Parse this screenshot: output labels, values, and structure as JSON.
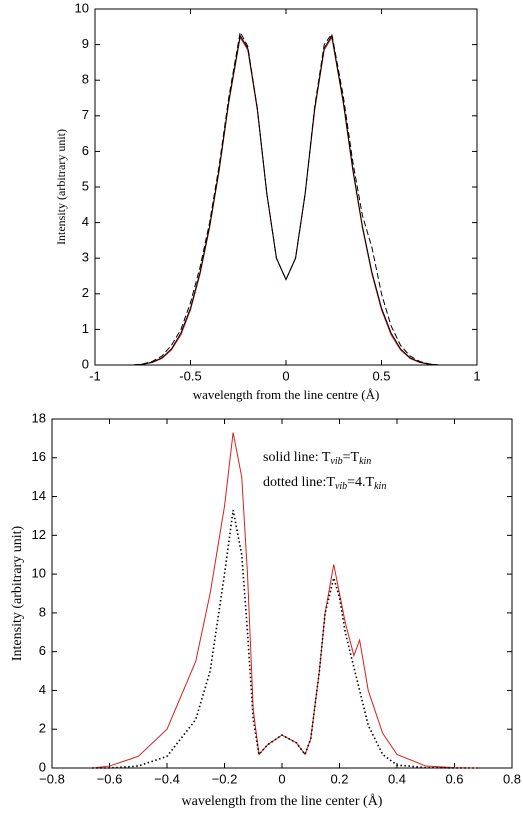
{
  "chart_data": [
    {
      "type": "line",
      "ylabel": "Intensity (arbitrary unit)",
      "xlabel": "wavelength from the line centre (Å)",
      "xlim": [
        -1,
        1
      ],
      "ylim": [
        0,
        10
      ],
      "xticks": [
        -1,
        -0.5,
        0,
        0.5,
        1
      ],
      "yticks": [
        0,
        1,
        2,
        3,
        4,
        5,
        6,
        7,
        8,
        9,
        10
      ],
      "x": [
        -0.8,
        -0.75,
        -0.7,
        -0.65,
        -0.6,
        -0.55,
        -0.5,
        -0.45,
        -0.4,
        -0.35,
        -0.3,
        -0.24,
        -0.2,
        -0.15,
        -0.1,
        -0.05,
        0,
        0.05,
        0.1,
        0.15,
        0.2,
        0.24,
        0.3,
        0.35,
        0.4,
        0.45,
        0.5,
        0.55,
        0.6,
        0.65,
        0.7,
        0.75,
        0.8
      ],
      "series": [
        {
          "color": "#d62020",
          "style": "solid",
          "values": [
            0,
            0.02,
            0.07,
            0.18,
            0.42,
            0.85,
            1.55,
            2.55,
            3.85,
            5.45,
            7.35,
            9.2,
            8.85,
            7.15,
            4.8,
            3.0,
            2.4,
            3.0,
            4.8,
            7.15,
            8.85,
            9.2,
            7.35,
            5.45,
            3.85,
            2.55,
            1.55,
            0.85,
            0.42,
            0.18,
            0.07,
            0.02,
            0
          ]
        },
        {
          "color": "#000000",
          "style": "solid",
          "values": [
            0,
            0.02,
            0.08,
            0.2,
            0.45,
            0.9,
            1.6,
            2.6,
            3.9,
            5.5,
            7.4,
            9.25,
            8.9,
            7.2,
            4.8,
            3.0,
            2.4,
            3.0,
            4.8,
            7.2,
            8.9,
            9.25,
            7.4,
            5.5,
            3.9,
            2.6,
            1.6,
            0.9,
            0.45,
            0.2,
            0.08,
            0.02,
            0
          ]
        },
        {
          "color": "#000000",
          "style": "dashed",
          "values": [
            0,
            0.03,
            0.1,
            0.25,
            0.55,
            1.0,
            1.75,
            2.75,
            4.0,
            5.6,
            7.5,
            9.35,
            8.95,
            7.2,
            4.8,
            3.0,
            2.4,
            3.0,
            4.8,
            7.25,
            9.0,
            9.3,
            7.55,
            5.7,
            4.2,
            3.3,
            2.0,
            1.1,
            0.55,
            0.25,
            0.1,
            0.03,
            0
          ]
        }
      ]
    },
    {
      "type": "line",
      "ylabel": "Intensity (arbitrary unit)",
      "xlabel": "wavelength from the line center (Å)",
      "annotations": [
        [
          "solid line: T",
          "vib",
          "=T",
          "kin"
        ],
        [
          "dotted line:T",
          "vib",
          "=4.T",
          "kin"
        ]
      ],
      "xlim": [
        -0.8,
        0.8
      ],
      "ylim": [
        0,
        18
      ],
      "xticks": [
        {
          "value": -0.8,
          "label": "−0.8"
        },
        {
          "value": -0.6,
          "label": "−0.6"
        },
        {
          "value": -0.4,
          "label": "−0.4"
        },
        {
          "value": -0.2,
          "label": "−0.2"
        },
        0,
        0.2,
        0.4,
        0.6,
        0.8
      ],
      "yticks": [
        0,
        2,
        4,
        6,
        8,
        10,
        12,
        14,
        16,
        18
      ],
      "x": [
        -0.66,
        -0.6,
        -0.5,
        -0.4,
        -0.3,
        -0.25,
        -0.2,
        -0.17,
        -0.14,
        -0.12,
        -0.1,
        -0.08,
        -0.05,
        0,
        0.05,
        0.08,
        0.1,
        0.13,
        0.15,
        0.18,
        0.2,
        0.22,
        0.25,
        0.27,
        0.3,
        0.35,
        0.4,
        0.5,
        0.6,
        0.68
      ],
      "series": [
        {
          "color": "#d62020",
          "style": "solid",
          "values": [
            0,
            0.1,
            0.6,
            2,
            5.5,
            9,
            13.5,
            17.3,
            15,
            10,
            3,
            0.7,
            1.2,
            1.7,
            1.3,
            0.7,
            1.5,
            5,
            8,
            10.5,
            9,
            7.5,
            5.8,
            6.6,
            4,
            1.8,
            0.7,
            0.1,
            0.02,
            0
          ]
        },
        {
          "color": "#000000",
          "style": "dotted",
          "values": [
            0,
            0,
            0.1,
            0.6,
            2.5,
            5,
            10,
            13.3,
            11,
            7,
            2.5,
            0.7,
            1.2,
            1.7,
            1.3,
            0.7,
            1.5,
            5,
            8,
            9.8,
            8.8,
            7,
            5.2,
            4,
            2.2,
            0.7,
            0.15,
            0.02,
            0,
            0
          ]
        }
      ]
    }
  ]
}
